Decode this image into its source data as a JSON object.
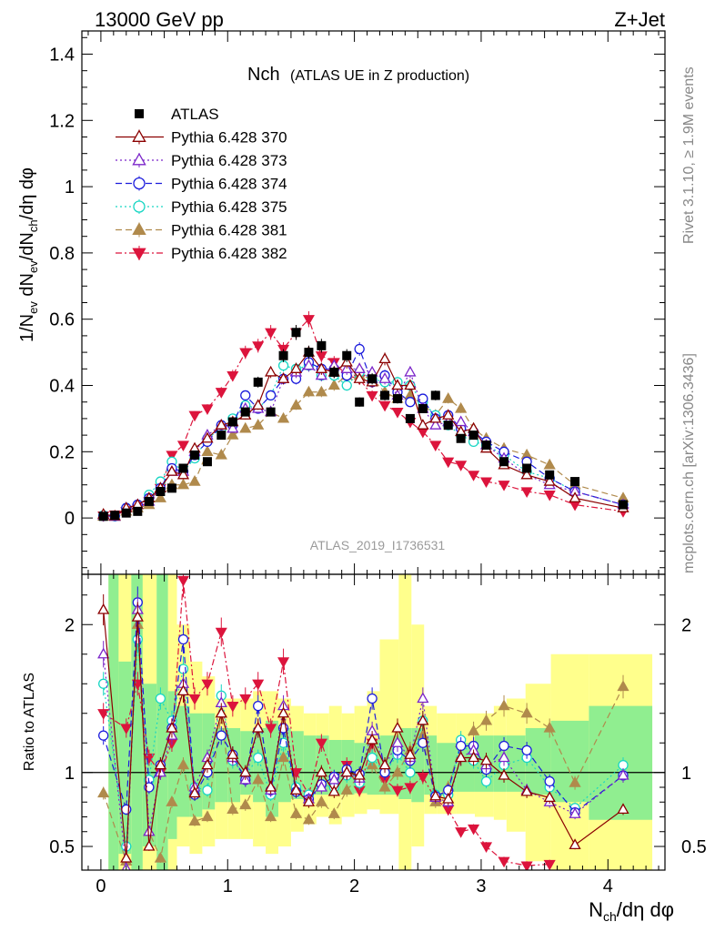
{
  "header": {
    "left_label": "13000 GeV pp",
    "right_label": "Z+Jet"
  },
  "side_text": {
    "rivet": "Rivet 3.1.10, ≥ 1.9M events",
    "mcplots": "mcplots.cern.ch [arXiv:1306.3436]"
  },
  "chart_data": [
    {
      "type": "scatter",
      "title": "Nch",
      "subtitle": "(ATLAS UE in Z production)",
      "analysis_id": "ATLAS_2019_I1736531",
      "ylabel": "1/N_ev dN_ev/dN_ch/dη dφ",
      "ylim": [
        -0.17,
        1.47
      ],
      "xlim": [
        -0.15,
        4.45
      ],
      "yticks": [
        0,
        0.2,
        0.4,
        0.6,
        0.8,
        1,
        1.2,
        1.4
      ],
      "ytick_labels": [
        "0",
        "0.2",
        "0.4",
        "0.6",
        "0.8",
        "1",
        "1.2",
        "1.4"
      ],
      "x": [
        0.02,
        0.11,
        0.2,
        0.29,
        0.38,
        0.47,
        0.56,
        0.65,
        0.74,
        0.84,
        0.95,
        1.04,
        1.14,
        1.24,
        1.34,
        1.44,
        1.54,
        1.64,
        1.74,
        1.84,
        1.94,
        2.04,
        2.14,
        2.24,
        2.34,
        2.44,
        2.54,
        2.64,
        2.74,
        2.84,
        2.94,
        3.04,
        3.18,
        3.36,
        3.54,
        3.74,
        4.12
      ],
      "series": [
        {
          "name": "ATLAS",
          "color": "#000000",
          "marker": "square-filled",
          "dash": "none",
          "values": [
            0.005,
            0.008,
            0.015,
            0.02,
            0.05,
            0.08,
            0.09,
            0.15,
            0.19,
            0.17,
            0.25,
            0.29,
            0.32,
            0.41,
            0.32,
            0.49,
            0.56,
            0.5,
            0.52,
            0.44,
            0.49,
            0.35,
            0.42,
            0.37,
            0.36,
            0.3,
            0.33,
            0.37,
            0.28,
            0.24,
            0.25,
            0.22,
            0.17,
            0.15,
            0.13,
            0.11,
            0.04
          ]
        },
        {
          "name": "Pythia 6.428 370",
          "color": "#8b0000",
          "marker": "triangle-up-open",
          "dash": "none",
          "values": [
            0.011,
            0.006,
            0.03,
            0.04,
            0.06,
            0.09,
            0.14,
            0.13,
            0.21,
            0.24,
            0.28,
            0.29,
            0.31,
            0.34,
            0.44,
            0.42,
            0.45,
            0.5,
            0.45,
            0.44,
            0.47,
            0.42,
            0.41,
            0.48,
            0.4,
            0.4,
            0.28,
            0.3,
            0.31,
            0.26,
            0.27,
            0.21,
            0.16,
            0.13,
            0.11,
            0.06,
            0.03
          ]
        },
        {
          "name": "Pythia 6.428 373",
          "color": "#7b25c9",
          "marker": "triangle-up-open",
          "dash": "dotted",
          "values": [
            0.009,
            0.004,
            0.03,
            0.04,
            0.05,
            0.09,
            0.14,
            0.14,
            0.2,
            0.25,
            0.28,
            0.27,
            0.33,
            0.33,
            0.32,
            0.42,
            0.44,
            0.46,
            0.43,
            0.46,
            0.45,
            0.45,
            0.44,
            0.42,
            0.37,
            0.44,
            0.33,
            0.28,
            0.29,
            0.29,
            0.26,
            0.22,
            0.18,
            0.13,
            0.1,
            0.08,
            0.04
          ]
        },
        {
          "name": "Pythia 6.428 374",
          "color": "#1c1cdc",
          "marker": "circle-open",
          "dash": "dashed",
          "values": [
            0.006,
            0.006,
            0.03,
            0.04,
            0.06,
            0.09,
            0.15,
            0.14,
            0.19,
            0.23,
            0.28,
            0.28,
            0.37,
            0.33,
            0.37,
            0.42,
            0.42,
            0.47,
            0.45,
            0.45,
            0.43,
            0.51,
            0.41,
            0.43,
            0.38,
            0.35,
            0.36,
            0.3,
            0.31,
            0.27,
            0.26,
            0.23,
            0.2,
            0.17,
            0.12,
            0.08,
            0.04
          ]
        },
        {
          "name": "Pythia 6.428 375",
          "color": "#17d6c3",
          "marker": "circle-open",
          "dash": "dotted",
          "values": [
            0.008,
            0.005,
            0.03,
            0.04,
            0.07,
            0.11,
            0.17,
            0.14,
            0.18,
            0.24,
            0.27,
            0.3,
            0.34,
            0.33,
            0.37,
            0.46,
            0.45,
            0.46,
            0.43,
            0.43,
            0.4,
            0.44,
            0.42,
            0.41,
            0.41,
            0.4,
            0.35,
            0.31,
            0.28,
            0.25,
            0.23,
            0.22,
            0.19,
            0.14,
            0.12,
            0.08,
            0.04
          ]
        },
        {
          "name": "Pythia 6.428 381",
          "color": "#b08a4c",
          "marker": "triangle-up-filled",
          "dash": "dashed",
          "values": [
            0.005,
            0.004,
            0.02,
            0.03,
            0.04,
            0.06,
            0.1,
            0.1,
            0.11,
            0.2,
            0.19,
            0.25,
            0.27,
            0.28,
            0.32,
            0.3,
            0.34,
            0.38,
            0.38,
            0.4,
            0.43,
            0.43,
            0.42,
            0.38,
            0.36,
            0.37,
            0.34,
            0.31,
            0.36,
            0.33,
            0.27,
            0.24,
            0.21,
            0.19,
            0.16,
            0.1,
            0.06
          ]
        },
        {
          "name": "Pythia 6.428 382",
          "color": "#dc143c",
          "marker": "triangle-down-filled",
          "dash": "dashdot",
          "values": [
            0.007,
            0.01,
            0.02,
            0.03,
            0.05,
            0.09,
            0.19,
            0.22,
            0.31,
            0.33,
            0.38,
            0.43,
            0.5,
            0.52,
            0.56,
            0.51,
            0.56,
            0.6,
            0.49,
            0.47,
            0.43,
            0.42,
            0.37,
            0.34,
            0.32,
            0.29,
            0.26,
            0.22,
            0.17,
            0.16,
            0.13,
            0.11,
            0.1,
            0.08,
            0.07,
            0.04,
            0.02
          ]
        }
      ]
    },
    {
      "type": "scatter",
      "ylabel": "Ratio to ATLAS",
      "xlabel": "N_ch/dη dφ",
      "ylim": [
        0.34,
        2.34
      ],
      "xlim": [
        -0.15,
        4.45
      ],
      "yticks": [
        0.5,
        1,
        2
      ],
      "ytick_labels": [
        "0.5",
        "1",
        "2"
      ],
      "xticks": [
        0,
        1,
        2,
        3,
        4
      ],
      "xtick_labels": [
        "0",
        "1",
        "2",
        "3",
        "4"
      ],
      "reference_line": 1,
      "band_edges": [
        0.06,
        0.14,
        0.24,
        0.33,
        0.44,
        0.53,
        0.6,
        0.7,
        0.8,
        0.9,
        1.0,
        1.1,
        1.2,
        1.3,
        1.4,
        1.5,
        1.6,
        1.7,
        1.8,
        1.9,
        2.0,
        2.1,
        2.2,
        2.35,
        2.45,
        2.55,
        2.65,
        2.8,
        2.95,
        3.1,
        3.2,
        3.35,
        3.55,
        3.85,
        4.35
      ],
      "band_green": [
        [
          0.34,
          2.34
        ],
        [
          0.45,
          1.75
        ],
        [
          0.34,
          2.34
        ],
        [
          0.5,
          1.6
        ],
        [
          0.34,
          2.34
        ],
        [
          0.55,
          1.55
        ],
        [
          0.7,
          1.45
        ],
        [
          0.7,
          1.4
        ],
        [
          0.75,
          1.4
        ],
        [
          0.8,
          1.3
        ],
        [
          0.8,
          1.3
        ],
        [
          0.85,
          1.28
        ],
        [
          0.8,
          1.3
        ],
        [
          0.7,
          1.35
        ],
        [
          0.8,
          1.3
        ],
        [
          0.82,
          1.28
        ],
        [
          0.85,
          1.25
        ],
        [
          0.85,
          1.25
        ],
        [
          0.85,
          1.22
        ],
        [
          0.85,
          1.22
        ],
        [
          0.86,
          1.2
        ],
        [
          0.85,
          1.22
        ],
        [
          0.85,
          1.25
        ],
        [
          0.82,
          1.3
        ],
        [
          0.8,
          1.3
        ],
        [
          0.85,
          1.25
        ],
        [
          0.87,
          1.2
        ],
        [
          0.87,
          1.2
        ],
        [
          0.87,
          1.25
        ],
        [
          0.87,
          1.25
        ],
        [
          0.87,
          1.25
        ],
        [
          0.85,
          1.3
        ],
        [
          0.8,
          1.35
        ],
        [
          0.68,
          1.45
        ]
      ],
      "band_yellow": [
        [
          0.34,
          2.34
        ],
        [
          0.34,
          2.34
        ],
        [
          0.34,
          2.34
        ],
        [
          0.34,
          2.34
        ],
        [
          0.34,
          2.34
        ],
        [
          0.34,
          2.34
        ],
        [
          0.5,
          2.0
        ],
        [
          0.45,
          1.75
        ],
        [
          0.5,
          1.65
        ],
        [
          0.55,
          1.5
        ],
        [
          0.55,
          1.5
        ],
        [
          0.55,
          1.5
        ],
        [
          0.5,
          1.55
        ],
        [
          0.45,
          1.55
        ],
        [
          0.5,
          1.5
        ],
        [
          0.6,
          1.45
        ],
        [
          0.65,
          1.4
        ],
        [
          0.7,
          1.4
        ],
        [
          0.65,
          1.45
        ],
        [
          0.7,
          1.4
        ],
        [
          0.72,
          1.45
        ],
        [
          0.75,
          1.55
        ],
        [
          0.72,
          1.9
        ],
        [
          0.34,
          2.34
        ],
        [
          0.5,
          2.0
        ],
        [
          0.72,
          1.45
        ],
        [
          0.72,
          1.4
        ],
        [
          0.72,
          1.4
        ],
        [
          0.7,
          1.4
        ],
        [
          0.68,
          1.45
        ],
        [
          0.6,
          1.5
        ],
        [
          0.4,
          1.6
        ],
        [
          0.34,
          1.8
        ],
        [
          0.34,
          1.8
        ]
      ],
      "series": [
        {
          "name": "Pythia 6.428 370",
          "values": [
            2.1,
            0.42,
            2.05,
            0.5,
            1.05,
            1.3,
            1.55,
            0.86,
            1.05,
            1.4,
            1.12,
            1.0,
            1.3,
            0.9,
            1.4,
            0.88,
            0.8,
            1.0,
            0.87,
            1.0,
            0.98,
            1.22,
            1.05,
            1.3,
            1.12,
            1.35,
            0.84,
            0.82,
            1.1,
            1.1,
            1.08,
            0.98,
            0.87,
            0.83,
            0.51,
            0.75
          ]
        },
        {
          "name": "Pythia 6.428 373",
          "values": [
            1.8,
            0.35,
            2.1,
            0.6,
            1.0,
            1.25,
            1.6,
            0.9,
            1.1,
            1.47,
            1.1,
            0.95,
            1.3,
            0.88,
            1.45,
            0.88,
            0.82,
            0.9,
            0.95,
            1.0,
            0.96,
            1.28,
            1.05,
            1.2,
            1.1,
            1.5,
            0.83,
            0.8,
            1.1,
            1.15,
            1.05,
            1.1,
            0.88,
            0.8,
            0.72,
            0.98
          ]
        },
        {
          "name": "Pythia 6.428 374",
          "values": [
            1.25,
            0.75,
            2.15,
            0.9,
            1.05,
            1.3,
            1.9,
            0.85,
            1.0,
            1.25,
            1.12,
            0.95,
            1.45,
            0.88,
            1.3,
            0.87,
            0.82,
            0.92,
            0.97,
            1.02,
            0.99,
            1.5,
            1.0,
            1.15,
            1.08,
            1.2,
            0.84,
            0.88,
            1.18,
            1.18,
            1.02,
            1.18,
            1.15,
            0.94,
            0.73,
            0.98
          ]
        },
        {
          "name": "Pythia 6.428 375",
          "values": [
            1.6,
            0.5,
            1.9,
            0.95,
            1.5,
            1.35,
            1.7,
            0.9,
            0.88,
            1.52,
            1.08,
            0.98,
            1.1,
            0.85,
            1.2,
            0.9,
            0.85,
            0.92,
            0.9,
            0.98,
            0.93,
            1.1,
            1.0,
            1.12,
            1.0,
            1.35,
            0.85,
            0.85,
            1.22,
            1.08,
            0.94,
            1.05,
            1.1,
            0.9,
            0.76,
            1.05
          ]
        },
        {
          "name": "Pythia 6.428 381",
          "values": [
            0.86,
            0.4,
            2.0,
            0.6,
            0.42,
            0.8,
            1.05,
            0.67,
            0.7,
            1.4,
            0.75,
            0.78,
            0.95,
            0.7,
            1.1,
            0.72,
            0.68,
            0.8,
            0.72,
            0.88,
            0.98,
            1.05,
            0.9,
            1.0,
            1.15,
            1.25,
            0.8,
            0.9,
            1.2,
            1.28,
            1.35,
            1.45,
            1.4,
            1.3,
            0.93,
            1.58
          ]
        },
        {
          "name": "Pythia 6.428 382",
          "values": [
            1.4,
            1.3,
            1.6,
            1.1,
            1.0,
            1.2,
            2.3,
            1.5,
            1.6,
            1.95,
            1.45,
            1.5,
            1.6,
            1.3,
            1.75,
            1.0,
            0.85,
            1.2,
            0.95,
            1.05,
            0.88,
            1.2,
            0.95,
            0.88,
            0.9,
            0.97,
            0.82,
            0.75,
            0.6,
            0.62,
            0.5,
            0.4,
            0.37,
            0.38
          ]
        }
      ]
    }
  ]
}
